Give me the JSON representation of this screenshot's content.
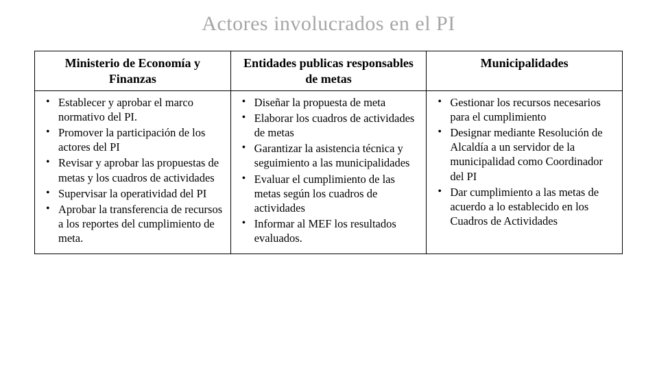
{
  "title": "Actores involucrados en el PI",
  "columns": [
    {
      "header": "Ministerio de Economía y Finanzas",
      "items": [
        "Establecer y aprobar el marco normativo del PI.",
        "Promover la participación de los actores del PI",
        "Revisar y aprobar las propuestas de metas y los cuadros de actividades",
        "Supervisar la operatividad del PI",
        "Aprobar la transferencia de recursos a los reportes del cumplimiento de meta."
      ]
    },
    {
      "header": "Entidades publicas responsables de metas",
      "items": [
        "Diseñar la propuesta de meta",
        "Elaborar los  cuadros de actividades de metas",
        "Garantizar la asistencia técnica y seguimiento a las municipalidades",
        "Evaluar el cumplimiento de las metas según los cuadros de actividades",
        "Informar al MEF los resultados evaluados."
      ]
    },
    {
      "header": "Municipalidades",
      "items": [
        "Gestionar los recursos necesarios para el cumplimiento",
        "Designar mediante Resolución de Alcaldía a un servidor de la municipalidad como Coordinador del PI",
        "Dar cumplimiento a las metas de acuerdo a lo establecido en los Cuadros de Actividades"
      ]
    }
  ],
  "style": {
    "title_color": "#a6a6a6",
    "title_fontsize": 30,
    "header_fontsize": 18,
    "body_fontsize": 16.5,
    "border_color": "#000000",
    "background": "#ffffff",
    "font_family": "Georgia, Times New Roman, serif"
  }
}
